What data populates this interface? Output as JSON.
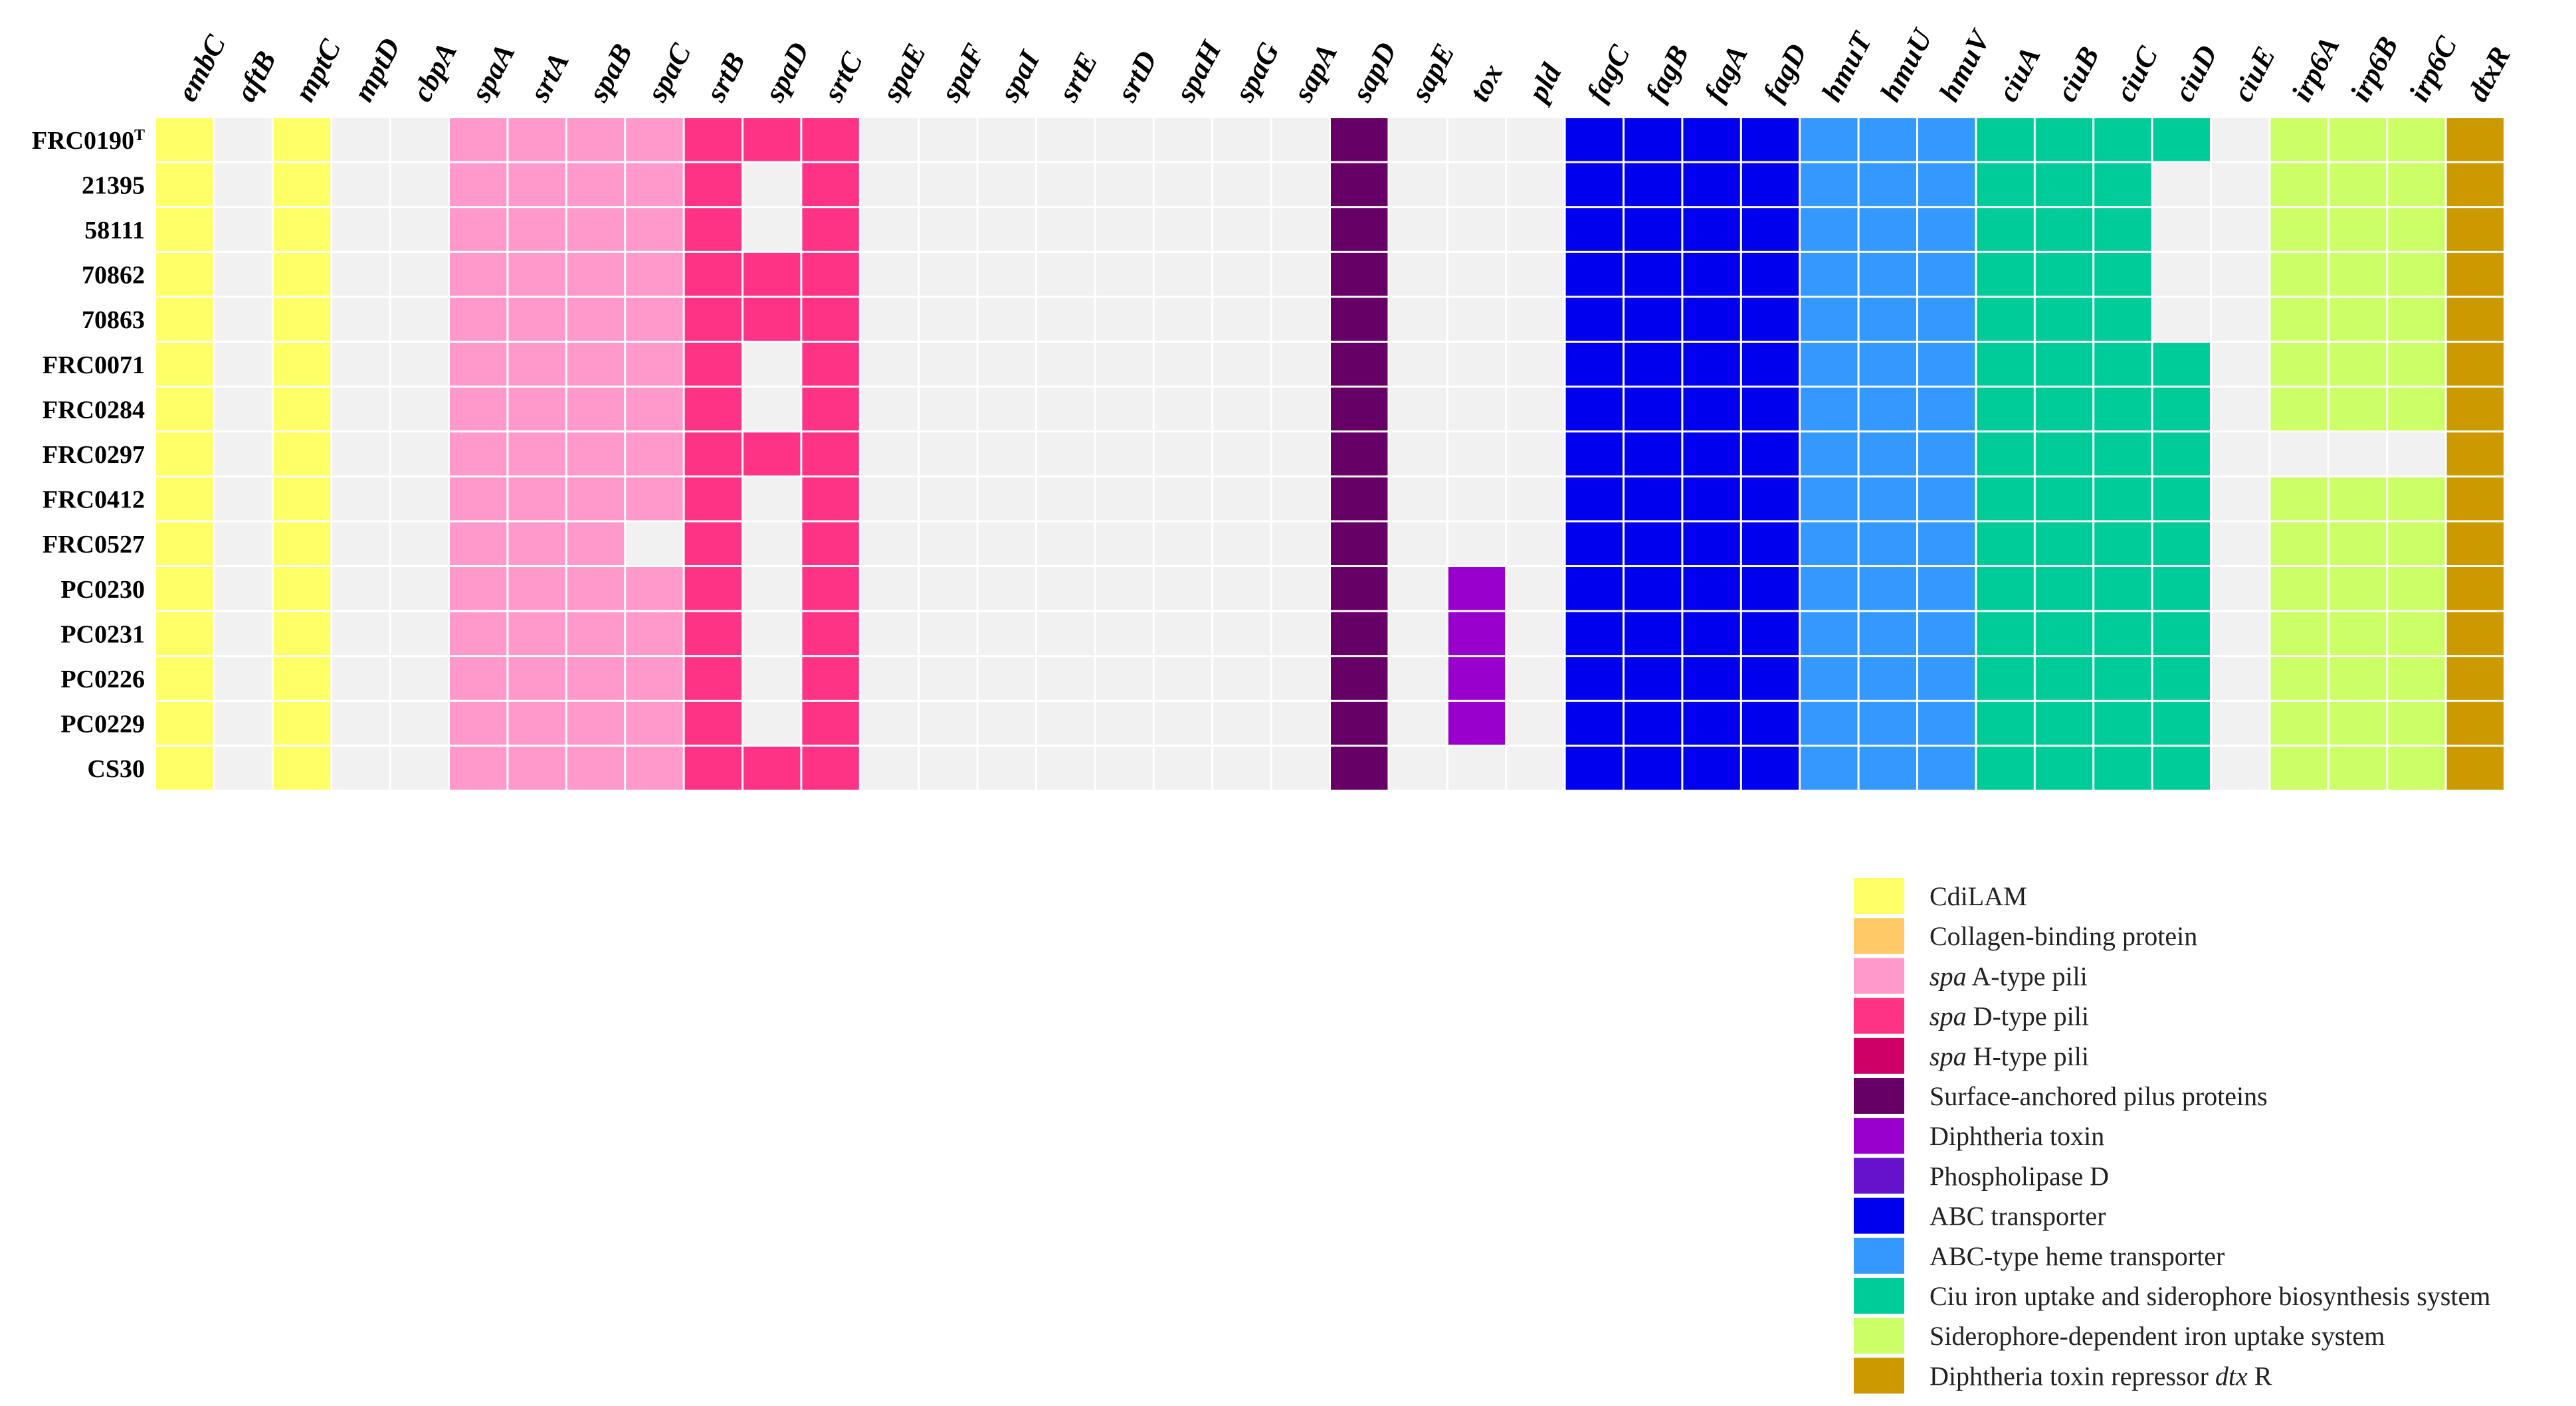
{
  "chart_data": {
    "type": "heatmap",
    "title": "",
    "genes": [
      "embC",
      "aftB",
      "mptC",
      "mptD",
      "cbpA",
      "spaA",
      "srtA",
      "spaB",
      "spaC",
      "srtB",
      "spaD",
      "srtC",
      "spaE",
      "spaF",
      "spaI",
      "srtE",
      "srtD",
      "spaH",
      "spaG",
      "sapA",
      "sapD",
      "sapE",
      "tox",
      "pld",
      "fagC",
      "fagB",
      "fagA",
      "fagD",
      "hmuT",
      "hmuU",
      "hmuV",
      "ciuA",
      "ciuB",
      "ciuC",
      "ciuD",
      "ciuE",
      "irp6A",
      "irp6B",
      "irp6C",
      "dtxR"
    ],
    "gene_categories": [
      "CdiLAM",
      "CdiLAM",
      "CdiLAM",
      "CdiLAM",
      "Collagen",
      "spaA",
      "spaA",
      "spaA",
      "spaA",
      "spaD",
      "spaD",
      "spaD",
      "spaD",
      "spaD",
      "spaD",
      "spaH",
      "spaH",
      "spaH",
      "spaH",
      "surface",
      "surface",
      "surface",
      "toxin",
      "pld",
      "abc",
      "abc",
      "abc",
      "abc",
      "heme",
      "heme",
      "heme",
      "ciu",
      "ciu",
      "ciu",
      "ciu",
      "ciu",
      "sider",
      "sider",
      "sider",
      "dtxR"
    ],
    "strains": [
      {
        "name": "FRC0190",
        "superscript": "T"
      },
      {
        "name": "21395",
        "superscript": ""
      },
      {
        "name": "58111",
        "superscript": ""
      },
      {
        "name": "70862",
        "superscript": ""
      },
      {
        "name": "70863",
        "superscript": ""
      },
      {
        "name": "FRC0071",
        "superscript": ""
      },
      {
        "name": "FRC0284",
        "superscript": ""
      },
      {
        "name": "FRC0297",
        "superscript": ""
      },
      {
        "name": "FRC0412",
        "superscript": ""
      },
      {
        "name": "FRC0527",
        "superscript": ""
      },
      {
        "name": "PC0230",
        "superscript": ""
      },
      {
        "name": "PC0231",
        "superscript": ""
      },
      {
        "name": "PC0226",
        "superscript": ""
      },
      {
        "name": "PC0229",
        "superscript": ""
      },
      {
        "name": "CS30",
        "superscript": ""
      }
    ],
    "presence": [
      [
        1,
        0,
        1,
        0,
        0,
        1,
        1,
        1,
        1,
        1,
        1,
        1,
        0,
        0,
        0,
        0,
        0,
        0,
        0,
        0,
        1,
        0,
        0,
        0,
        1,
        1,
        1,
        1,
        1,
        1,
        1,
        1,
        1,
        1,
        1,
        0,
        1,
        1,
        1,
        1
      ],
      [
        1,
        0,
        1,
        0,
        0,
        1,
        1,
        1,
        1,
        1,
        0,
        1,
        0,
        0,
        0,
        0,
        0,
        0,
        0,
        0,
        1,
        0,
        0,
        0,
        1,
        1,
        1,
        1,
        1,
        1,
        1,
        1,
        1,
        1,
        0,
        0,
        1,
        1,
        1,
        1
      ],
      [
        1,
        0,
        1,
        0,
        0,
        1,
        1,
        1,
        1,
        1,
        0,
        1,
        0,
        0,
        0,
        0,
        0,
        0,
        0,
        0,
        1,
        0,
        0,
        0,
        1,
        1,
        1,
        1,
        1,
        1,
        1,
        1,
        1,
        1,
        0,
        0,
        1,
        1,
        1,
        1
      ],
      [
        1,
        0,
        1,
        0,
        0,
        1,
        1,
        1,
        1,
        1,
        1,
        1,
        0,
        0,
        0,
        0,
        0,
        0,
        0,
        0,
        1,
        0,
        0,
        0,
        1,
        1,
        1,
        1,
        1,
        1,
        1,
        1,
        1,
        1,
        0,
        0,
        1,
        1,
        1,
        1
      ],
      [
        1,
        0,
        1,
        0,
        0,
        1,
        1,
        1,
        1,
        1,
        1,
        1,
        0,
        0,
        0,
        0,
        0,
        0,
        0,
        0,
        1,
        0,
        0,
        0,
        1,
        1,
        1,
        1,
        1,
        1,
        1,
        1,
        1,
        1,
        0,
        0,
        1,
        1,
        1,
        1
      ],
      [
        1,
        0,
        1,
        0,
        0,
        1,
        1,
        1,
        1,
        1,
        0,
        1,
        0,
        0,
        0,
        0,
        0,
        0,
        0,
        0,
        1,
        0,
        0,
        0,
        1,
        1,
        1,
        1,
        1,
        1,
        1,
        1,
        1,
        1,
        1,
        0,
        1,
        1,
        1,
        1
      ],
      [
        1,
        0,
        1,
        0,
        0,
        1,
        1,
        1,
        1,
        1,
        0,
        1,
        0,
        0,
        0,
        0,
        0,
        0,
        0,
        0,
        1,
        0,
        0,
        0,
        1,
        1,
        1,
        1,
        1,
        1,
        1,
        1,
        1,
        1,
        1,
        0,
        1,
        1,
        1,
        1
      ],
      [
        1,
        0,
        1,
        0,
        0,
        1,
        1,
        1,
        1,
        1,
        1,
        1,
        0,
        0,
        0,
        0,
        0,
        0,
        0,
        0,
        1,
        0,
        0,
        0,
        1,
        1,
        1,
        1,
        1,
        1,
        1,
        1,
        1,
        1,
        1,
        0,
        0,
        0,
        0,
        1
      ],
      [
        1,
        0,
        1,
        0,
        0,
        1,
        1,
        1,
        1,
        1,
        0,
        1,
        0,
        0,
        0,
        0,
        0,
        0,
        0,
        0,
        1,
        0,
        0,
        0,
        1,
        1,
        1,
        1,
        1,
        1,
        1,
        1,
        1,
        1,
        1,
        0,
        1,
        1,
        1,
        1
      ],
      [
        1,
        0,
        1,
        0,
        0,
        1,
        1,
        1,
        0,
        1,
        0,
        1,
        0,
        0,
        0,
        0,
        0,
        0,
        0,
        0,
        1,
        0,
        0,
        0,
        1,
        1,
        1,
        1,
        1,
        1,
        1,
        1,
        1,
        1,
        1,
        0,
        1,
        1,
        1,
        1
      ],
      [
        1,
        0,
        1,
        0,
        0,
        1,
        1,
        1,
        1,
        1,
        0,
        1,
        0,
        0,
        0,
        0,
        0,
        0,
        0,
        0,
        1,
        0,
        1,
        0,
        1,
        1,
        1,
        1,
        1,
        1,
        1,
        1,
        1,
        1,
        1,
        0,
        1,
        1,
        1,
        1
      ],
      [
        1,
        0,
        1,
        0,
        0,
        1,
        1,
        1,
        1,
        1,
        0,
        1,
        0,
        0,
        0,
        0,
        0,
        0,
        0,
        0,
        1,
        0,
        1,
        0,
        1,
        1,
        1,
        1,
        1,
        1,
        1,
        1,
        1,
        1,
        1,
        0,
        1,
        1,
        1,
        1
      ],
      [
        1,
        0,
        1,
        0,
        0,
        1,
        1,
        1,
        1,
        1,
        0,
        1,
        0,
        0,
        0,
        0,
        0,
        0,
        0,
        0,
        1,
        0,
        1,
        0,
        1,
        1,
        1,
        1,
        1,
        1,
        1,
        1,
        1,
        1,
        1,
        0,
        1,
        1,
        1,
        1
      ],
      [
        1,
        0,
        1,
        0,
        0,
        1,
        1,
        1,
        1,
        1,
        0,
        1,
        0,
        0,
        0,
        0,
        0,
        0,
        0,
        0,
        1,
        0,
        1,
        0,
        1,
        1,
        1,
        1,
        1,
        1,
        1,
        1,
        1,
        1,
        1,
        0,
        1,
        1,
        1,
        1
      ],
      [
        1,
        0,
        1,
        0,
        0,
        1,
        1,
        1,
        1,
        1,
        1,
        1,
        0,
        0,
        0,
        0,
        0,
        0,
        0,
        0,
        1,
        0,
        0,
        0,
        1,
        1,
        1,
        1,
        1,
        1,
        1,
        1,
        1,
        1,
        1,
        0,
        1,
        1,
        1,
        1
      ]
    ],
    "absent_color": "#f1f1f1",
    "legend": [
      {
        "key": "CdiLAM",
        "label": "CdiLAM",
        "color": "#ffff66"
      },
      {
        "key": "Collagen",
        "label": "Collagen-binding protein",
        "color": "#ffc966"
      },
      {
        "key": "spaA",
        "label_italic": "spa",
        "label": " A-type pili",
        "color": "#ff99cc"
      },
      {
        "key": "spaD",
        "label_italic": "spa",
        "label": " D-type pili",
        "color": "#ff3385"
      },
      {
        "key": "spaH",
        "label_italic": "spa",
        "label": " H-type pili",
        "color": "#cc0066"
      },
      {
        "key": "surface",
        "label": "Surface-anchored pilus proteins",
        "color": "#660066"
      },
      {
        "key": "toxin",
        "label": "Diphtheria toxin",
        "color": "#9900cc"
      },
      {
        "key": "pld",
        "label": "Phospholipase D",
        "color": "#6611cc"
      },
      {
        "key": "abc",
        "label": "ABC transporter",
        "color": "#0000ee"
      },
      {
        "key": "heme",
        "label": "ABC-type heme transporter",
        "color": "#3399ff"
      },
      {
        "key": "ciu",
        "label": "Ciu iron uptake and siderophore biosynthesis system",
        "color": "#00cc99"
      },
      {
        "key": "sider",
        "label": "Siderophore-dependent iron uptake system",
        "color": "#ccff66"
      },
      {
        "key": "dtxR",
        "label": "Diphtheria toxin repressor ",
        "label_italic_suffix": "dtx",
        "label_tail": " R",
        "color": "#cc9900"
      }
    ]
  }
}
